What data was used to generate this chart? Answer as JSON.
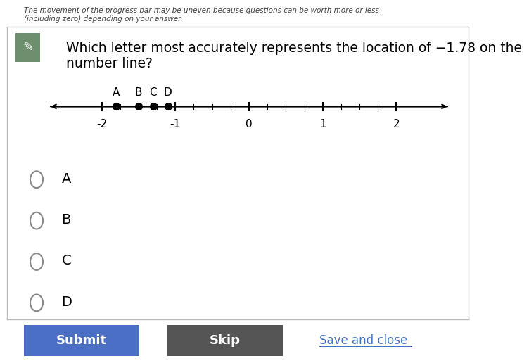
{
  "title_text": "Which letter most accurately represents the location of −1.78 on the\nnumber line?",
  "subtitle_text": "The movement of the progress bar may be uneven because questions can be worth more or less\n(including zero) depending on your answer.",
  "tick_positions": [
    -2,
    -1,
    0,
    1,
    2
  ],
  "tick_labels": [
    "-2",
    "-1",
    "0",
    "1",
    "2"
  ],
  "letter_positions": {
    "A": -1.8,
    "B": -1.5,
    "C": -1.3,
    "D": -1.1
  },
  "options": [
    "A",
    "B",
    "C",
    "D"
  ],
  "submit_color": "#4a6fc4",
  "skip_color": "#555555",
  "save_close_color": "#4472c4",
  "background_color": "#ffffff",
  "icon_color": "#6d8f6d",
  "text_color": "#000000"
}
